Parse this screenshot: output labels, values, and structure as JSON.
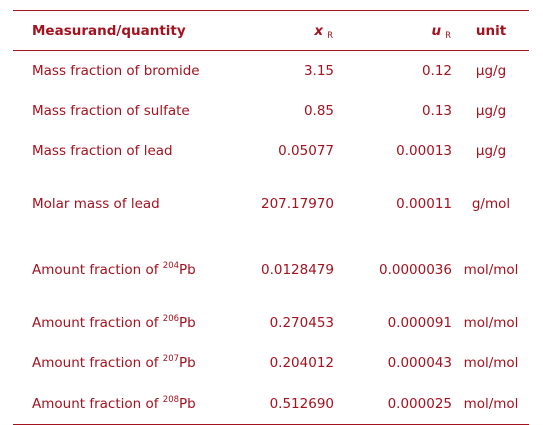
{
  "header": {
    "quantity": "Measurand/quantity",
    "x_symbol": "x",
    "x_sub": "R",
    "u_symbol": "u",
    "u_sub": "R",
    "unit": "unit"
  },
  "rows": [
    {
      "name": "Mass fraction of bromide",
      "x": "3.15",
      "u": "0.12",
      "unit": "µg/g"
    },
    {
      "name": "Mass fraction of sulfate",
      "x": "0.85",
      "u": "0.13",
      "unit": "µg/g"
    },
    {
      "name": "Mass fraction of lead",
      "x": "0.05077",
      "u": "0.00013",
      "unit": "µg/g"
    },
    {
      "name": "Molar mass of lead",
      "x": "207.17970",
      "u": "0.00011",
      "unit": "g/mol"
    },
    {
      "name_prefix": "Amount fraction of ",
      "mass_number": "204",
      "element": "Pb",
      "x": "0.0128479",
      "u": "0.0000036",
      "unit": "mol/mol"
    },
    {
      "name_prefix": "Amount fraction of ",
      "mass_number": "206",
      "element": "Pb",
      "x": "0.270453",
      "u": "0.000091",
      "unit": "mol/mol"
    },
    {
      "name_prefix": "Amount fraction of ",
      "mass_number": "207",
      "element": "Pb",
      "x": "0.204012",
      "u": "0.000043",
      "unit": "mol/mol"
    },
    {
      "name_prefix": "Amount fraction of ",
      "mass_number": "208",
      "element": "Pb",
      "x": "0.512690",
      "u": "0.000025",
      "unit": "mol/mol"
    }
  ],
  "colors": {
    "text": "#a3121f",
    "rule": "#a3121f",
    "background": "#ffffff"
  }
}
